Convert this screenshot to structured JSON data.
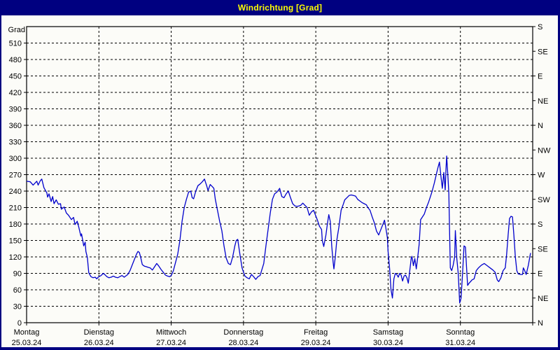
{
  "window": {
    "title": "Windrichtung [Grad]"
  },
  "colors": {
    "titlebar_bg": "#000080",
    "titlebar_fg": "#FFFF00",
    "plot_bg": "#FCFCF8",
    "axis": "#000000",
    "grid": "#000000",
    "series_line": "#0000CC"
  },
  "y_axis": {
    "unit_label": "Grad",
    "left_tick_labels": [
      "0",
      "30",
      "60",
      "90",
      "120",
      "150",
      "180",
      "210",
      "240",
      "270",
      "300",
      "330",
      "360",
      "390",
      "420",
      "450",
      "480",
      "510"
    ],
    "right_labels_top_to_bottom": [
      "S",
      "SE",
      "E",
      "NE",
      "N",
      "NW",
      "W",
      "SW",
      "S",
      "SE",
      "E",
      "NE",
      "N"
    ]
  },
  "x_axis": {
    "days": [
      {
        "name": "Montag",
        "date": "25.03.24"
      },
      {
        "name": "Dienstag",
        "date": "26.03.24"
      },
      {
        "name": "Mittwoch",
        "date": "27.03.24"
      },
      {
        "name": "Donnerstag",
        "date": "28.03.24"
      },
      {
        "name": "Freitag",
        "date": "29.03.24"
      },
      {
        "name": "Samstag",
        "date": "30.03.24"
      },
      {
        "name": "Sonntag",
        "date": "31.03.24"
      }
    ]
  },
  "chart_data": {
    "type": "line",
    "title": "Windrichtung [Grad]",
    "ylabel": "Grad",
    "ylim": [
      0,
      540
    ],
    "y_grid_step": 30,
    "right_axis_compass_step_deg": 45,
    "x_unit": "days since Montag 25.03.24 00:00",
    "xlim": [
      0,
      7
    ],
    "grid": "dashed",
    "legend": "none",
    "series": [
      {
        "name": "Windrichtung",
        "color": "#0000CC",
        "points": [
          [
            0.0,
            258
          ],
          [
            0.05,
            257
          ],
          [
            0.09,
            251
          ],
          [
            0.14,
            258
          ],
          [
            0.16,
            251
          ],
          [
            0.19,
            259
          ],
          [
            0.21,
            262
          ],
          [
            0.24,
            246
          ],
          [
            0.28,
            237
          ],
          [
            0.29,
            229
          ],
          [
            0.31,
            235
          ],
          [
            0.34,
            221
          ],
          [
            0.36,
            230
          ],
          [
            0.38,
            217
          ],
          [
            0.41,
            224
          ],
          [
            0.44,
            216
          ],
          [
            0.47,
            217
          ],
          [
            0.48,
            207
          ],
          [
            0.52,
            211
          ],
          [
            0.55,
            200
          ],
          [
            0.58,
            196
          ],
          [
            0.62,
            188
          ],
          [
            0.65,
            192
          ],
          [
            0.67,
            179
          ],
          [
            0.7,
            185
          ],
          [
            0.72,
            175
          ],
          [
            0.75,
            158
          ],
          [
            0.76,
            162
          ],
          [
            0.79,
            140
          ],
          [
            0.81,
            147
          ],
          [
            0.82,
            130
          ],
          [
            0.84,
            119
          ],
          [
            0.86,
            91
          ],
          [
            0.89,
            84
          ],
          [
            0.92,
            82
          ],
          [
            0.95,
            83
          ],
          [
            0.97,
            80
          ],
          [
            0.99,
            83
          ],
          [
            1.03,
            86
          ],
          [
            1.06,
            90
          ],
          [
            1.08,
            88
          ],
          [
            1.11,
            84
          ],
          [
            1.14,
            82
          ],
          [
            1.17,
            83
          ],
          [
            1.2,
            85
          ],
          [
            1.23,
            83
          ],
          [
            1.26,
            82
          ],
          [
            1.29,
            84
          ],
          [
            1.32,
            86
          ],
          [
            1.35,
            83
          ],
          [
            1.37,
            85
          ],
          [
            1.4,
            88
          ],
          [
            1.43,
            95
          ],
          [
            1.46,
            105
          ],
          [
            1.49,
            115
          ],
          [
            1.52,
            125
          ],
          [
            1.54,
            130
          ],
          [
            1.56,
            128
          ],
          [
            1.58,
            118
          ],
          [
            1.6,
            106
          ],
          [
            1.63,
            103
          ],
          [
            1.66,
            102
          ],
          [
            1.68,
            101
          ],
          [
            1.71,
            100
          ],
          [
            1.74,
            96
          ],
          [
            1.77,
            102
          ],
          [
            1.8,
            108
          ],
          [
            1.83,
            103
          ],
          [
            1.86,
            97
          ],
          [
            1.89,
            92
          ],
          [
            1.92,
            87
          ],
          [
            1.95,
            85
          ],
          [
            1.98,
            84
          ],
          [
            2.0,
            86
          ],
          [
            2.03,
            95
          ],
          [
            2.06,
            110
          ],
          [
            2.09,
            125
          ],
          [
            2.12,
            150
          ],
          [
            2.15,
            185
          ],
          [
            2.18,
            210
          ],
          [
            2.21,
            225
          ],
          [
            2.24,
            238
          ],
          [
            2.27,
            240
          ],
          [
            2.29,
            228
          ],
          [
            2.31,
            226
          ],
          [
            2.34,
            240
          ],
          [
            2.37,
            250
          ],
          [
            2.4,
            253
          ],
          [
            2.43,
            257
          ],
          [
            2.46,
            262
          ],
          [
            2.49,
            250
          ],
          [
            2.51,
            241
          ],
          [
            2.54,
            252
          ],
          [
            2.57,
            248
          ],
          [
            2.59,
            245
          ],
          [
            2.61,
            225
          ],
          [
            2.64,
            205
          ],
          [
            2.67,
            185
          ],
          [
            2.7,
            168
          ],
          [
            2.73,
            140
          ],
          [
            2.76,
            118
          ],
          [
            2.79,
            108
          ],
          [
            2.82,
            106
          ],
          [
            2.85,
            120
          ],
          [
            2.88,
            140
          ],
          [
            2.9,
            150
          ],
          [
            2.92,
            152
          ],
          [
            2.95,
            125
          ],
          [
            2.98,
            100
          ],
          [
            3.0,
            92
          ],
          [
            3.02,
            85
          ],
          [
            3.05,
            82
          ],
          [
            3.08,
            80
          ],
          [
            3.11,
            88
          ],
          [
            3.14,
            84
          ],
          [
            3.17,
            79
          ],
          [
            3.2,
            84
          ],
          [
            3.23,
            86
          ],
          [
            3.25,
            95
          ],
          [
            3.28,
            108
          ],
          [
            3.31,
            140
          ],
          [
            3.34,
            170
          ],
          [
            3.37,
            200
          ],
          [
            3.4,
            225
          ],
          [
            3.43,
            235
          ],
          [
            3.46,
            238
          ],
          [
            3.49,
            243
          ],
          [
            3.5,
            245
          ],
          [
            3.53,
            230
          ],
          [
            3.56,
            228
          ],
          [
            3.59,
            235
          ],
          [
            3.62,
            240
          ],
          [
            3.65,
            228
          ],
          [
            3.68,
            217
          ],
          [
            3.71,
            213
          ],
          [
            3.74,
            212
          ],
          [
            3.77,
            213
          ],
          [
            3.79,
            214
          ],
          [
            3.82,
            218
          ],
          [
            3.85,
            214
          ],
          [
            3.88,
            210
          ],
          [
            3.91,
            196
          ],
          [
            3.94,
            202
          ],
          [
            3.97,
            205
          ],
          [
            3.99,
            198
          ],
          [
            4.02,
            188
          ],
          [
            4.05,
            176
          ],
          [
            4.08,
            170
          ],
          [
            4.09,
            150
          ],
          [
            4.11,
            139
          ],
          [
            4.14,
            160
          ],
          [
            4.16,
            180
          ],
          [
            4.18,
            197
          ],
          [
            4.2,
            185
          ],
          [
            4.22,
            140
          ],
          [
            4.24,
            110
          ],
          [
            4.25,
            98
          ],
          [
            4.27,
            120
          ],
          [
            4.29,
            150
          ],
          [
            4.32,
            175
          ],
          [
            4.35,
            205
          ],
          [
            4.38,
            216
          ],
          [
            4.4,
            224
          ],
          [
            4.43,
            228
          ],
          [
            4.46,
            232
          ],
          [
            4.49,
            233
          ],
          [
            4.52,
            232
          ],
          [
            4.55,
            231
          ],
          [
            4.58,
            225
          ],
          [
            4.61,
            222
          ],
          [
            4.64,
            219
          ],
          [
            4.67,
            217
          ],
          [
            4.7,
            215
          ],
          [
            4.72,
            210
          ],
          [
            4.75,
            205
          ],
          [
            4.78,
            193
          ],
          [
            4.81,
            182
          ],
          [
            4.84,
            167
          ],
          [
            4.87,
            160
          ],
          [
            4.9,
            170
          ],
          [
            4.93,
            180
          ],
          [
            4.95,
            187
          ],
          [
            4.97,
            172
          ],
          [
            4.99,
            155
          ],
          [
            5.0,
            130
          ],
          [
            5.02,
            100
          ],
          [
            5.04,
            60
          ],
          [
            5.06,
            45
          ],
          [
            5.08,
            80
          ],
          [
            5.1,
            90
          ],
          [
            5.12,
            88
          ],
          [
            5.14,
            83
          ],
          [
            5.16,
            90
          ],
          [
            5.18,
            87
          ],
          [
            5.2,
            76
          ],
          [
            5.22,
            85
          ],
          [
            5.24,
            87
          ],
          [
            5.26,
            82
          ],
          [
            5.28,
            72
          ],
          [
            5.3,
            95
          ],
          [
            5.32,
            118
          ],
          [
            5.33,
            121
          ],
          [
            5.35,
            104
          ],
          [
            5.37,
            117
          ],
          [
            5.39,
            98
          ],
          [
            5.41,
            120
          ],
          [
            5.43,
            143
          ],
          [
            5.45,
            188
          ],
          [
            5.47,
            192
          ],
          [
            5.5,
            198
          ],
          [
            5.53,
            210
          ],
          [
            5.56,
            220
          ],
          [
            5.59,
            232
          ],
          [
            5.61,
            240
          ],
          [
            5.64,
            255
          ],
          [
            5.67,
            272
          ],
          [
            5.69,
            283
          ],
          [
            5.71,
            293
          ],
          [
            5.73,
            268
          ],
          [
            5.75,
            245
          ],
          [
            5.77,
            274
          ],
          [
            5.79,
            242
          ],
          [
            5.8,
            280
          ],
          [
            5.81,
            304
          ],
          [
            5.83,
            260
          ],
          [
            5.84,
            235
          ],
          [
            5.86,
            100
          ],
          [
            5.88,
            95
          ],
          [
            5.9,
            105
          ],
          [
            5.92,
            120
          ],
          [
            5.93,
            168
          ],
          [
            5.95,
            117
          ],
          [
            5.97,
            90
          ],
          [
            5.99,
            36
          ],
          [
            6.01,
            45
          ],
          [
            6.03,
            90
          ],
          [
            6.05,
            140
          ],
          [
            6.07,
            138
          ],
          [
            6.09,
            90
          ],
          [
            6.1,
            68
          ],
          [
            6.12,
            72
          ],
          [
            6.14,
            75
          ],
          [
            6.16,
            78
          ],
          [
            6.19,
            80
          ],
          [
            6.22,
            95
          ],
          [
            6.25,
            100
          ],
          [
            6.29,
            105
          ],
          [
            6.33,
            108
          ],
          [
            6.37,
            104
          ],
          [
            6.41,
            100
          ],
          [
            6.45,
            96
          ],
          [
            6.48,
            92
          ],
          [
            6.51,
            78
          ],
          [
            6.53,
            75
          ],
          [
            6.56,
            82
          ],
          [
            6.59,
            95
          ],
          [
            6.62,
            100
          ],
          [
            6.64,
            125
          ],
          [
            6.66,
            160
          ],
          [
            6.68,
            190
          ],
          [
            6.7,
            194
          ],
          [
            6.72,
            193
          ],
          [
            6.74,
            160
          ],
          [
            6.76,
            120
          ],
          [
            6.78,
            95
          ],
          [
            6.8,
            89
          ],
          [
            6.83,
            88
          ],
          [
            6.86,
            88
          ],
          [
            6.87,
            100
          ],
          [
            6.89,
            95
          ],
          [
            6.91,
            88
          ],
          [
            6.94,
            105
          ],
          [
            6.97,
            127
          ]
        ]
      }
    ]
  }
}
